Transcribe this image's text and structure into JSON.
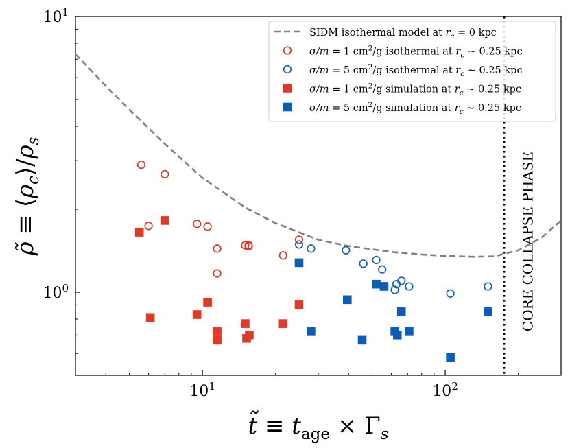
{
  "chart_data": {
    "type": "scatter",
    "title": "",
    "xlabel": "t̃ ≡ t_age × Γ_s",
    "ylabel": "ρ̃ ≡ ⟨ρ_c⟩/ρ_s",
    "xscale": "log",
    "yscale": "log",
    "xlim": [
      3.0,
      300.0
    ],
    "ylim": [
      0.5,
      10.0
    ],
    "x_ticks": [
      {
        "value": 10,
        "base": "10",
        "exp": "1"
      },
      {
        "value": 100,
        "base": "10",
        "exp": "2"
      }
    ],
    "y_ticks": [
      {
        "value": 1,
        "base": "10",
        "exp": "0"
      },
      {
        "value": 10,
        "base": "10",
        "exp": "1"
      }
    ],
    "grid": false,
    "legend_position": "top-right",
    "annotation": {
      "text": "CORE COLLAPSE PHASE",
      "x_line": 175
    },
    "series": [
      {
        "name": "SIDM isothermal model at r_c = 0 kpc",
        "legend": {
          "pre": "SIDM isothermal model at ",
          "m1": "r",
          "sub1": "c",
          "m2": " = 0 kpc"
        },
        "marker": "dashed-line",
        "color": "#808080",
        "x": [
          3.0,
          4.0,
          5.0,
          7.0,
          10.0,
          15.0,
          20.0,
          30.0,
          40.0,
          60.0,
          80.0,
          100.0,
          130.0,
          160.0,
          200.0,
          250.0,
          300.0
        ],
        "y": [
          7.3,
          5.6,
          4.6,
          3.45,
          2.6,
          2.03,
          1.78,
          1.55,
          1.47,
          1.4,
          1.37,
          1.355,
          1.345,
          1.35,
          1.42,
          1.58,
          1.82
        ]
      },
      {
        "name": "σ/m = 1 cm²/g isothermal at r_c ∼ 0.25 kpc",
        "legend": {
          "m1": "σ/m",
          "t1": " = 1 cm",
          "sup": "2",
          "t2": "/g isothermal at ",
          "m2": "r",
          "sub": "c",
          "t3": " ∼ 0.25 kpc"
        },
        "marker": "open-circle",
        "color": "#d9372a",
        "x": [
          5.6,
          6.0,
          7.0,
          9.5,
          10.5,
          11.5,
          11.5,
          15.0,
          15.5,
          15.5,
          21.5,
          25.0
        ],
        "y": [
          2.9,
          1.74,
          2.68,
          1.77,
          1.73,
          1.44,
          1.17,
          1.48,
          1.48,
          1.47,
          1.36,
          1.55
        ]
      },
      {
        "name": "σ/m = 5 cm²/g isothermal at r_c ∼ 0.25 kpc",
        "legend": {
          "m1": "σ/m",
          "t1": " = 5 cm",
          "sup": "2",
          "t2": "/g isothermal at ",
          "m2": "r",
          "sub": "c",
          "t3": " ∼ 0.25 kpc"
        },
        "marker": "open-circle",
        "color": "#1a63b5",
        "x": [
          25.0,
          28.0,
          39.0,
          46.0,
          52.0,
          55.0,
          62.0,
          63.0,
          66.0,
          71.0,
          105.0,
          150.0
        ],
        "y": [
          1.49,
          1.44,
          1.42,
          1.27,
          1.31,
          1.21,
          1.02,
          1.07,
          1.1,
          1.05,
          0.99,
          1.05
        ]
      },
      {
        "name": "σ/m = 1 cm²/g simulation at r_c ∼ 0.25 kpc",
        "legend": {
          "m1": "σ/m",
          "t1": " = 1 cm",
          "sup": "2",
          "t2": "/g simulation at ",
          "m2": "r",
          "sub": "c",
          "t3": " ∼ 0.25 kpc"
        },
        "marker": "filled-square",
        "color": "#e03a26",
        "x": [
          5.5,
          6.1,
          7.0,
          9.5,
          10.5,
          11.5,
          11.5,
          15.0,
          15.2,
          15.6,
          21.5,
          25.0
        ],
        "y": [
          1.65,
          0.81,
          1.82,
          0.83,
          0.92,
          0.72,
          0.67,
          0.77,
          0.68,
          0.7,
          0.77,
          0.9
        ]
      },
      {
        "name": "σ/m = 5 cm²/g simulation at r_c ∼ 0.25 kpc",
        "legend": {
          "m1": "σ/m",
          "t1": " = 5 cm",
          "sup": "2",
          "t2": "/g simulation at ",
          "m2": "r",
          "sub": "c",
          "t3": " ∼ 0.25 kpc"
        },
        "marker": "filled-square",
        "color": "#0b5db8",
        "x": [
          25.0,
          28.0,
          39.5,
          45.5,
          52.0,
          56.0,
          62.0,
          63.5,
          66.0,
          71.0,
          105.0,
          150.0
        ],
        "y": [
          1.28,
          0.72,
          0.94,
          0.67,
          1.07,
          1.05,
          0.72,
          0.7,
          0.85,
          0.72,
          0.58,
          0.85
        ]
      }
    ]
  }
}
